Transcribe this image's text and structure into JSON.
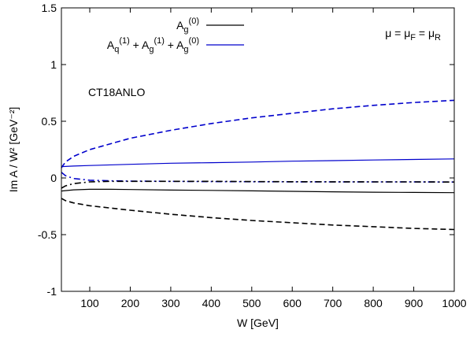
{
  "chart_data": {
    "type": "line",
    "xlabel": "W [GeV]",
    "ylabel": "Im A / W² [GeV⁻²]",
    "xlim": [
      30,
      1000
    ],
    "ylim": [
      -1,
      1.5
    ],
    "xticks": [
      100,
      200,
      300,
      400,
      500,
      600,
      700,
      800,
      900,
      1000
    ],
    "yticks": [
      -1,
      -0.5,
      0,
      0.5,
      1,
      1.5
    ],
    "ytick_labels": [
      "-1",
      "-0.5",
      "0",
      "0.5",
      "1",
      "1.5"
    ],
    "grid": false,
    "legend_position": "top-left",
    "legend": [
      {
        "label": "A_g^(0)",
        "color": "#000000"
      },
      {
        "label": "A_q^(1) + A_g^(1) + A_g^(0)",
        "color": "#0000cc"
      }
    ],
    "annotations": {
      "scale": "μ = μ_F = μ_R",
      "pdf_set": "CT18ANLO"
    },
    "series": [
      {
        "color": "#0000cc",
        "dash": "dashed",
        "x": [
          30,
          40,
          60,
          100,
          200,
          300,
          400,
          500,
          600,
          700,
          800,
          900,
          1000
        ],
        "y": [
          0.09,
          0.14,
          0.19,
          0.25,
          0.35,
          0.42,
          0.48,
          0.53,
          0.57,
          0.61,
          0.64,
          0.665,
          0.685
        ]
      },
      {
        "color": "#0000cc",
        "dash": "solid",
        "x": [
          30,
          60,
          100,
          200,
          300,
          400,
          500,
          600,
          700,
          800,
          900,
          1000
        ],
        "y": [
          0.1,
          0.105,
          0.11,
          0.12,
          0.13,
          0.135,
          0.14,
          0.148,
          0.153,
          0.158,
          0.163,
          0.168
        ]
      },
      {
        "color": "#0000cc",
        "dash": "dashdot",
        "x": [
          30,
          40,
          60,
          100,
          150,
          200,
          300,
          400,
          500,
          600,
          700,
          800,
          900,
          1000
        ],
        "y": [
          0.05,
          0.02,
          -0.005,
          -0.02,
          -0.025,
          -0.028,
          -0.03,
          -0.032,
          -0.033,
          -0.034,
          -0.035,
          -0.035,
          -0.035,
          -0.036
        ]
      },
      {
        "color": "#000000",
        "dash": "dashdot",
        "x": [
          30,
          40,
          60,
          100,
          150,
          200,
          300,
          400,
          500,
          600,
          700,
          800,
          900,
          1000
        ],
        "y": [
          -0.09,
          -0.07,
          -0.05,
          -0.035,
          -0.03,
          -0.03,
          -0.03,
          -0.03,
          -0.032,
          -0.033,
          -0.034,
          -0.035,
          -0.035,
          -0.036
        ]
      },
      {
        "color": "#000000",
        "dash": "solid",
        "x": [
          30,
          60,
          100,
          150,
          200,
          300,
          400,
          500,
          600,
          700,
          800,
          900,
          1000
        ],
        "y": [
          -0.115,
          -0.105,
          -0.1,
          -0.1,
          -0.102,
          -0.107,
          -0.11,
          -0.114,
          -0.118,
          -0.122,
          -0.126,
          -0.128,
          -0.13
        ]
      },
      {
        "color": "#000000",
        "dash": "dashed",
        "x": [
          30,
          40,
          60,
          100,
          200,
          300,
          400,
          500,
          600,
          700,
          800,
          900,
          1000
        ],
        "y": [
          -0.18,
          -0.2,
          -0.22,
          -0.245,
          -0.285,
          -0.32,
          -0.35,
          -0.375,
          -0.395,
          -0.415,
          -0.43,
          -0.445,
          -0.455
        ]
      }
    ]
  }
}
